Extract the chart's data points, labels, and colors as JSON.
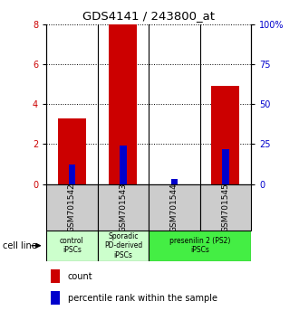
{
  "title": "GDS4141 / 243800_at",
  "samples": [
    "GSM701542",
    "GSM701543",
    "GSM701544",
    "GSM701545"
  ],
  "counts": [
    3.3,
    8.0,
    0.0,
    4.9
  ],
  "percentiles": [
    12.0,
    24.0,
    3.0,
    22.0
  ],
  "left_ylim": [
    0,
    8
  ],
  "left_yticks": [
    0,
    2,
    4,
    6,
    8
  ],
  "right_ylim": [
    0,
    100
  ],
  "right_yticks": [
    0,
    25,
    50,
    75,
    100
  ],
  "right_yticklabels": [
    "0",
    "25",
    "50",
    "75",
    "100%"
  ],
  "count_color": "#cc0000",
  "percentile_color": "#0000cc",
  "sample_box_color": "#cccccc",
  "group1_color": "#ccffcc",
  "group2_color": "#44ee44",
  "cell_line_label": "cell line",
  "legend_count_label": "count",
  "legend_percentile_label": "percentile rank within the sample"
}
